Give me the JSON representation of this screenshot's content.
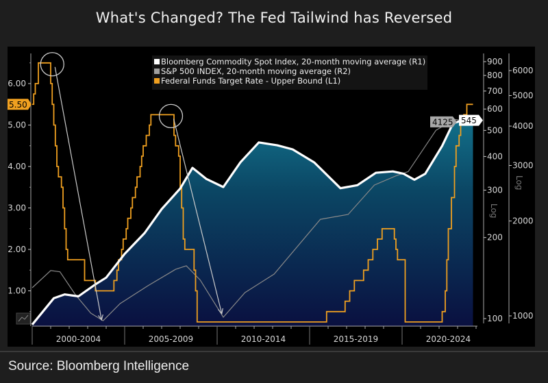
{
  "title": "What's Changed? The Fed Tailwind has Reversed",
  "source": "Source: Bloomberg Intelligence",
  "chart_data": {
    "type": "line",
    "title": "What's Changed? The Fed Tailwind has Reversed",
    "x_range": [
      "2000-01",
      "2024-01"
    ],
    "x_tick_labels": [
      "2000-2004",
      "2005-2009",
      "2010-2014",
      "2015-2019",
      "2020-2024"
    ],
    "legend_position": "top-right",
    "grid": false,
    "axes": {
      "L1": {
        "ticks": [
          "1.00",
          "2.00",
          "3.00",
          "4.00",
          "5.00",
          "6.00"
        ],
        "range": [
          0.17,
          6.65
        ],
        "scale": "linear"
      },
      "R1": {
        "ticks": [
          "100",
          "200",
          "300",
          "400",
          "500",
          "600",
          "700",
          "800",
          "900"
        ],
        "scale": "log",
        "label": "Log"
      },
      "R2": {
        "ticks": [
          "1000",
          "2000",
          "3000",
          "4000",
          "5000",
          "6000"
        ],
        "scale": "log",
        "label": "Log"
      }
    },
    "series": [
      {
        "name": "Bloomberg Commodity Spot Index, 20-month moving average (R1)",
        "axis": "R1",
        "color": "#ffffff",
        "filled": true,
        "last_value_label": "545",
        "points": [
          [
            "2000-01",
            95
          ],
          [
            "2001-03",
            119
          ],
          [
            "2001-10",
            123
          ],
          [
            "2002-07",
            121
          ],
          [
            "2003-06",
            134
          ],
          [
            "2004-01",
            142
          ],
          [
            "2005-01",
            174
          ],
          [
            "2006-02",
            208
          ],
          [
            "2007-01",
            255
          ],
          [
            "2008-01",
            304
          ],
          [
            "2008-09",
            363
          ],
          [
            "2009-06",
            330
          ],
          [
            "2010-05",
            308
          ],
          [
            "2011-04",
            380
          ],
          [
            "2012-04",
            451
          ],
          [
            "2013-04",
            440
          ],
          [
            "2014-02",
            425
          ],
          [
            "2015-04",
            380
          ],
          [
            "2016-09",
            305
          ],
          [
            "2017-08",
            313
          ],
          [
            "2018-08",
            348
          ],
          [
            "2019-07",
            352
          ],
          [
            "2020-02",
            345
          ],
          [
            "2020-09",
            328
          ],
          [
            "2021-04",
            345
          ],
          [
            "2022-03",
            438
          ],
          [
            "2022-10",
            531
          ],
          [
            "2023-05",
            547
          ],
          [
            "2023-08",
            551
          ],
          [
            "2023-11",
            545
          ]
        ]
      },
      {
        "name": "S&P 500 INDEX, 20-month moving average (R2)",
        "axis": "R2",
        "color": "#8a8a8a",
        "last_value_label": "4125",
        "points": [
          [
            "2000-01",
            1228
          ],
          [
            "2001-01",
            1392
          ],
          [
            "2001-07",
            1380
          ],
          [
            "2002-05",
            1168
          ],
          [
            "2003-03",
            1020
          ],
          [
            "2003-11",
            965
          ],
          [
            "2004-10",
            1094
          ],
          [
            "2006-04",
            1246
          ],
          [
            "2007-10",
            1405
          ],
          [
            "2008-05",
            1442
          ],
          [
            "2009-02",
            1300
          ],
          [
            "2010-05",
            990
          ],
          [
            "2011-07",
            1185
          ],
          [
            "2013-02",
            1357
          ],
          [
            "2015-08",
            2024
          ],
          [
            "2017-02",
            2098
          ],
          [
            "2018-07",
            2600
          ],
          [
            "2019-09",
            2780
          ],
          [
            "2020-05",
            2870
          ],
          [
            "2021-11",
            3880
          ],
          [
            "2022-11",
            4200
          ],
          [
            "2023-11",
            4125
          ]
        ]
      },
      {
        "name": "Federal Funds Target Rate - Upper Bound (L1)",
        "axis": "L1",
        "color": "#f0a020",
        "step": true,
        "last_value_label": "5.50",
        "points": [
          [
            "2000-01",
            5.5
          ],
          [
            "2000-02",
            5.75
          ],
          [
            "2000-03",
            6.0
          ],
          [
            "2000-05",
            6.5
          ],
          [
            "2001-01",
            6.0
          ],
          [
            "2001-02",
            5.5
          ],
          [
            "2001-03",
            5.0
          ],
          [
            "2001-04",
            4.5
          ],
          [
            "2001-05",
            4.0
          ],
          [
            "2001-06",
            3.75
          ],
          [
            "2001-08",
            3.5
          ],
          [
            "2001-09",
            3.0
          ],
          [
            "2001-10",
            2.5
          ],
          [
            "2001-11",
            2.0
          ],
          [
            "2001-12",
            1.75
          ],
          [
            "2002-11",
            1.25
          ],
          [
            "2003-06",
            1.0
          ],
          [
            "2004-06",
            1.25
          ],
          [
            "2004-08",
            1.5
          ],
          [
            "2004-09",
            1.75
          ],
          [
            "2004-11",
            2.0
          ],
          [
            "2004-12",
            2.25
          ],
          [
            "2005-02",
            2.5
          ],
          [
            "2005-03",
            2.75
          ],
          [
            "2005-05",
            3.0
          ],
          [
            "2005-06",
            3.25
          ],
          [
            "2005-08",
            3.5
          ],
          [
            "2005-09",
            3.75
          ],
          [
            "2005-11",
            4.0
          ],
          [
            "2005-12",
            4.25
          ],
          [
            "2006-01",
            4.5
          ],
          [
            "2006-03",
            4.75
          ],
          [
            "2006-05",
            5.0
          ],
          [
            "2006-06",
            5.25
          ],
          [
            "2007-09",
            4.75
          ],
          [
            "2007-10",
            4.5
          ],
          [
            "2007-12",
            4.25
          ],
          [
            "2008-01",
            3.5
          ],
          [
            "2008-02",
            3.0
          ],
          [
            "2008-03",
            2.25
          ],
          [
            "2008-04",
            2.0
          ],
          [
            "2008-10",
            1.5
          ],
          [
            "2008-11",
            1.0
          ],
          [
            "2008-12",
            0.25
          ],
          [
            "2015-12",
            0.5
          ],
          [
            "2016-12",
            0.75
          ],
          [
            "2017-03",
            1.0
          ],
          [
            "2017-06",
            1.25
          ],
          [
            "2017-12",
            1.5
          ],
          [
            "2018-03",
            1.75
          ],
          [
            "2018-06",
            2.0
          ],
          [
            "2018-09",
            2.25
          ],
          [
            "2018-12",
            2.5
          ],
          [
            "2019-08",
            2.25
          ],
          [
            "2019-09",
            2.0
          ],
          [
            "2019-10",
            1.75
          ],
          [
            "2020-03",
            0.25
          ],
          [
            "2022-03",
            0.5
          ],
          [
            "2022-05",
            1.0
          ],
          [
            "2022-06",
            1.75
          ],
          [
            "2022-07",
            2.5
          ],
          [
            "2022-09",
            3.25
          ],
          [
            "2022-11",
            4.0
          ],
          [
            "2022-12",
            4.5
          ],
          [
            "2023-02",
            4.75
          ],
          [
            "2023-03",
            5.0
          ],
          [
            "2023-05",
            5.25
          ],
          [
            "2023-07",
            5.5
          ],
          [
            "2023-11",
            5.5
          ]
        ]
      }
    ],
    "annotations": [
      {
        "type": "circle-arrow",
        "from": [
          "2001-02",
          6.5
        ],
        "to": [
          "2003-10",
          0.3
        ]
      },
      {
        "type": "circle-arrow",
        "from": [
          "2007-07",
          5.25
        ],
        "to": [
          "2010-04",
          0.45
        ]
      }
    ]
  }
}
